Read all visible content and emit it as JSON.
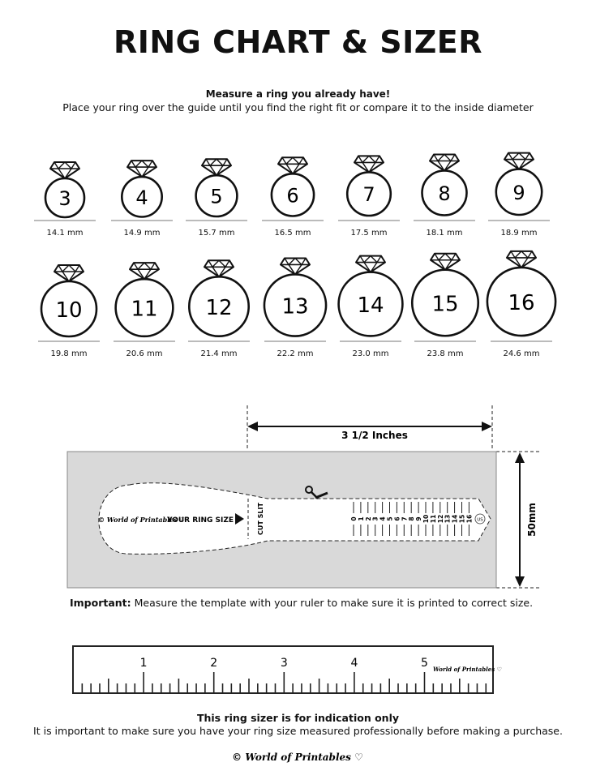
{
  "title": "RING CHART & SIZER",
  "subtitle_bold": "Measure a ring you already have!",
  "subtitle": "Place your ring over the guide until you find the right fit or compare it to the inside diameter",
  "rings": [
    {
      "size": "3",
      "mm": "14.1 mm"
    },
    {
      "size": "4",
      "mm": "14.9 mm"
    },
    {
      "size": "5",
      "mm": "15.7 mm"
    },
    {
      "size": "6",
      "mm": "16.5 mm"
    },
    {
      "size": "7",
      "mm": "17.5 mm"
    },
    {
      "size": "8",
      "mm": "18.1 mm"
    },
    {
      "size": "9",
      "mm": "18.9 mm"
    },
    {
      "size": "10",
      "mm": "19.8 mm"
    },
    {
      "size": "11",
      "mm": "20.6 mm"
    },
    {
      "size": "12",
      "mm": "21.4 mm"
    },
    {
      "size": "13",
      "mm": "22.2 mm"
    },
    {
      "size": "14",
      "mm": "23.0 mm"
    },
    {
      "size": "15",
      "mm": "23.8 mm"
    },
    {
      "size": "16",
      "mm": "24.6 mm"
    }
  ],
  "sizer": {
    "width_label": "3 1/2 Inches",
    "height_label": "50mm",
    "brand": "© World of Printables ♡",
    "your_ring_size": "YOUR RING SIZE",
    "cut_slit": "CUT SLIT",
    "scale": [
      "0",
      "1",
      "2",
      "3",
      "4",
      "5",
      "6",
      "7",
      "8",
      "9",
      "10",
      "11",
      "12",
      "13",
      "14",
      "15",
      "16"
    ],
    "unit_badge": "US",
    "background": "#d9d9d9"
  },
  "important_label": "Important:",
  "important_text": " Measure the template with your ruler to make sure it is printed to correct size.",
  "ruler": {
    "numbers": [
      "1",
      "2",
      "3",
      "4",
      "5"
    ],
    "brand": "World of Printables ♡"
  },
  "disclaimer_bold": "This ring sizer is for indication only",
  "disclaimer": "It is important to make sure you have your ring size measured professionally before making a purchase.",
  "footer_brand": "© World of Printables ♡"
}
